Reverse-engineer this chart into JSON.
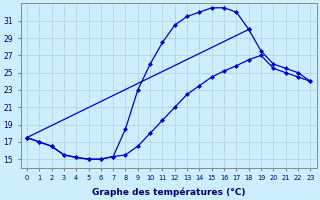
{
  "title": "Graphe des températures (°C)",
  "bg_color": "#cceeff",
  "grid_color": "#aad4d8",
  "line_color": "#0000cc",
  "xlim": [
    -0.5,
    23.5
  ],
  "ylim": [
    14.0,
    33.0
  ],
  "yticks": [
    15,
    17,
    19,
    21,
    23,
    25,
    27,
    29,
    31
  ],
  "xticks": [
    0,
    1,
    2,
    3,
    4,
    5,
    6,
    7,
    8,
    9,
    10,
    11,
    12,
    13,
    14,
    15,
    16,
    17,
    18,
    19,
    20,
    21,
    22,
    23
  ],
  "curve1_x": [
    0,
    1,
    2,
    3,
    4,
    5,
    6,
    7,
    8,
    9,
    10,
    11,
    12,
    13,
    14,
    15,
    16,
    17,
    18
  ],
  "curve1_y": [
    17.5,
    17.0,
    16.5,
    15.5,
    15.2,
    15.0,
    15.0,
    15.3,
    18.5,
    23.0,
    26.0,
    28.5,
    30.5,
    31.5,
    32.0,
    32.5,
    32.5,
    32.0,
    30.0
  ],
  "curve2_x": [
    0,
    1,
    2,
    3,
    4,
    5,
    6,
    7,
    8,
    9,
    10,
    11,
    12,
    13,
    14,
    15,
    16,
    17,
    18,
    19,
    20,
    21,
    22,
    23
  ],
  "curve2_y": [
    17.5,
    17.0,
    16.5,
    15.5,
    15.2,
    15.0,
    15.0,
    15.3,
    15.5,
    16.5,
    18.0,
    19.5,
    21.0,
    22.5,
    23.5,
    24.5,
    25.2,
    25.8,
    26.5,
    27.0,
    25.5,
    25.0,
    24.5,
    24.0
  ],
  "curve3_x": [
    0,
    18,
    19,
    20,
    21,
    22,
    23
  ],
  "curve3_y": [
    17.5,
    30.0,
    27.5,
    26.0,
    25.5,
    25.0,
    24.0
  ]
}
